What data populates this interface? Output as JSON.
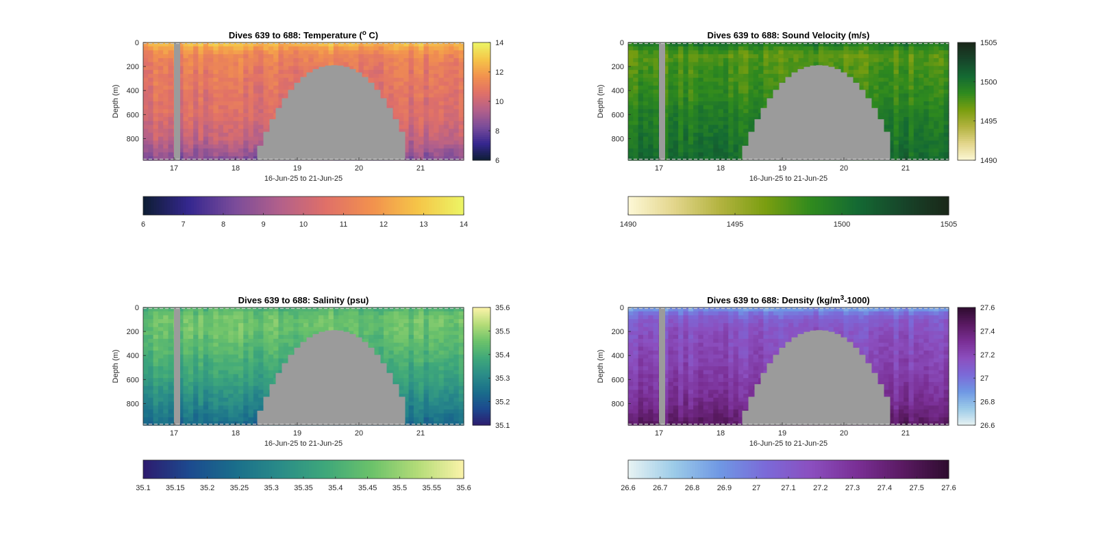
{
  "figure": {
    "x_ticks": [
      "17",
      "18",
      "19",
      "20",
      "21"
    ],
    "x_tick_values": [
      17,
      18,
      19,
      20,
      21
    ],
    "xlim": [
      16.5,
      21.7
    ],
    "xlabel": "16-Jun-25 to 21-Jun-25",
    "ylabel": "Depth (m)",
    "y_ticks": [
      "0",
      "200",
      "400",
      "600",
      "800"
    ],
    "y_tick_values": [
      0,
      200,
      400,
      600,
      800
    ],
    "ylim": [
      0,
      980
    ],
    "nodata_color": "#9b9b9b",
    "gap_column_day": [
      17.0,
      17.1
    ],
    "seamount": {
      "x_start": 18.35,
      "x_end": 20.75,
      "peak_x": 19.55,
      "peak_depth": 190,
      "base_depth": 980
    }
  },
  "chart_data": [
    {
      "type": "heatmap",
      "id": "temperature",
      "title_prefix": "Dives 639 to 688: Temperature (",
      "title_sup": "o",
      "title_suffix": " C)",
      "variable": "Temperature",
      "units": "°C",
      "clim": [
        6,
        14
      ],
      "right_colorbar_ticks": [
        "6",
        "8",
        "10",
        "12",
        "14"
      ],
      "right_colorbar_values": [
        6,
        8,
        10,
        12,
        14
      ],
      "bottom_colorbar_ticks": [
        "6",
        "7",
        "8",
        "9",
        "10",
        "11",
        "12",
        "13",
        "14"
      ],
      "bottom_colorbar_values": [
        6,
        7,
        8,
        9,
        10,
        11,
        12,
        13,
        14
      ],
      "colormap": [
        "#0d1d33",
        "#35278f",
        "#7a4c9a",
        "#b3608a",
        "#e07068",
        "#f2914e",
        "#f5c548",
        "#ecf565"
      ],
      "profile_depth": [
        0,
        50,
        100,
        200,
        400,
        600,
        800,
        980
      ],
      "profile_value": [
        12.8,
        12.0,
        11.4,
        11.0,
        10.7,
        10.4,
        9.8,
        8.4
      ]
    },
    {
      "type": "heatmap",
      "id": "sound_velocity",
      "title_prefix": "Dives 639 to 688: Sound Velocity (m/s)",
      "title_sup": "",
      "title_suffix": "",
      "variable": "Sound Velocity",
      "units": "m/s",
      "clim": [
        1490,
        1505
      ],
      "right_colorbar_ticks": [
        "1490",
        "1495",
        "1500",
        "1505"
      ],
      "right_colorbar_values": [
        1490,
        1495,
        1500,
        1505
      ],
      "bottom_colorbar_ticks": [
        "1490",
        "1495",
        "1500",
        "1505"
      ],
      "bottom_colorbar_values": [
        1490,
        1495,
        1500,
        1505
      ],
      "colormap": [
        "#fdf8d6",
        "#e3d68c",
        "#b3b340",
        "#7a9e10",
        "#2f8a1e",
        "#146a33",
        "#17452a",
        "#1a2719"
      ],
      "profile_depth": [
        0,
        50,
        100,
        200,
        400,
        600,
        800,
        980
      ],
      "profile_value": [
        1500.2,
        1498.5,
        1497.3,
        1497.8,
        1498.4,
        1499.3,
        1500.0,
        1500.6
      ]
    },
    {
      "type": "heatmap",
      "id": "salinity",
      "title_prefix": "Dives 639 to 688: Salinity (psu)",
      "title_sup": "",
      "title_suffix": "",
      "variable": "Salinity",
      "units": "psu",
      "clim": [
        35.1,
        35.6
      ],
      "right_colorbar_ticks": [
        "35.1",
        "35.2",
        "35.3",
        "35.4",
        "35.5",
        "35.6"
      ],
      "right_colorbar_values": [
        35.1,
        35.2,
        35.3,
        35.4,
        35.5,
        35.6
      ],
      "bottom_colorbar_ticks": [
        "35.1",
        "35.15",
        "35.2",
        "35.25",
        "35.3",
        "35.35",
        "35.4",
        "35.45",
        "35.5",
        "35.55",
        "35.6"
      ],
      "bottom_colorbar_values": [
        35.1,
        35.15,
        35.2,
        35.25,
        35.3,
        35.35,
        35.4,
        35.45,
        35.5,
        35.55,
        35.6
      ],
      "colormap": [
        "#2d1b6e",
        "#1c4a8f",
        "#1a6e8b",
        "#2a8c88",
        "#3fa87a",
        "#6cc26a",
        "#b4dc78",
        "#fbf3a9"
      ],
      "profile_depth": [
        0,
        50,
        100,
        200,
        400,
        600,
        800,
        980
      ],
      "profile_value": [
        35.41,
        35.44,
        35.46,
        35.45,
        35.41,
        35.36,
        35.3,
        35.23
      ]
    },
    {
      "type": "heatmap",
      "id": "density",
      "title_prefix": "Dives 639 to 688: Density (kg/m",
      "title_sup": "3",
      "title_suffix": "-1000)",
      "variable": "Density",
      "units": "kg/m3-1000",
      "clim": [
        26.6,
        27.6
      ],
      "right_colorbar_ticks": [
        "26.6",
        "26.8",
        "27",
        "27.2",
        "27.4",
        "27.6"
      ],
      "right_colorbar_values": [
        26.6,
        26.8,
        27.0,
        27.2,
        27.4,
        27.6
      ],
      "bottom_colorbar_ticks": [
        "26.6",
        "26.7",
        "26.8",
        "26.9",
        "27",
        "27.1",
        "27.2",
        "27.3",
        "27.4",
        "27.5",
        "27.6"
      ],
      "bottom_colorbar_values": [
        26.6,
        26.7,
        26.8,
        26.9,
        27.0,
        27.1,
        27.2,
        27.3,
        27.4,
        27.5,
        27.6
      ],
      "colormap": [
        "#e8f3f3",
        "#9ccbe8",
        "#6f98e4",
        "#7b6ad8",
        "#8b4fbf",
        "#7a2f95",
        "#5a1a62",
        "#2e0c2f"
      ],
      "profile_depth": [
        0,
        50,
        100,
        200,
        400,
        600,
        800,
        980
      ],
      "profile_value": [
        26.85,
        27.0,
        27.1,
        27.15,
        27.2,
        27.25,
        27.33,
        27.45
      ]
    }
  ]
}
